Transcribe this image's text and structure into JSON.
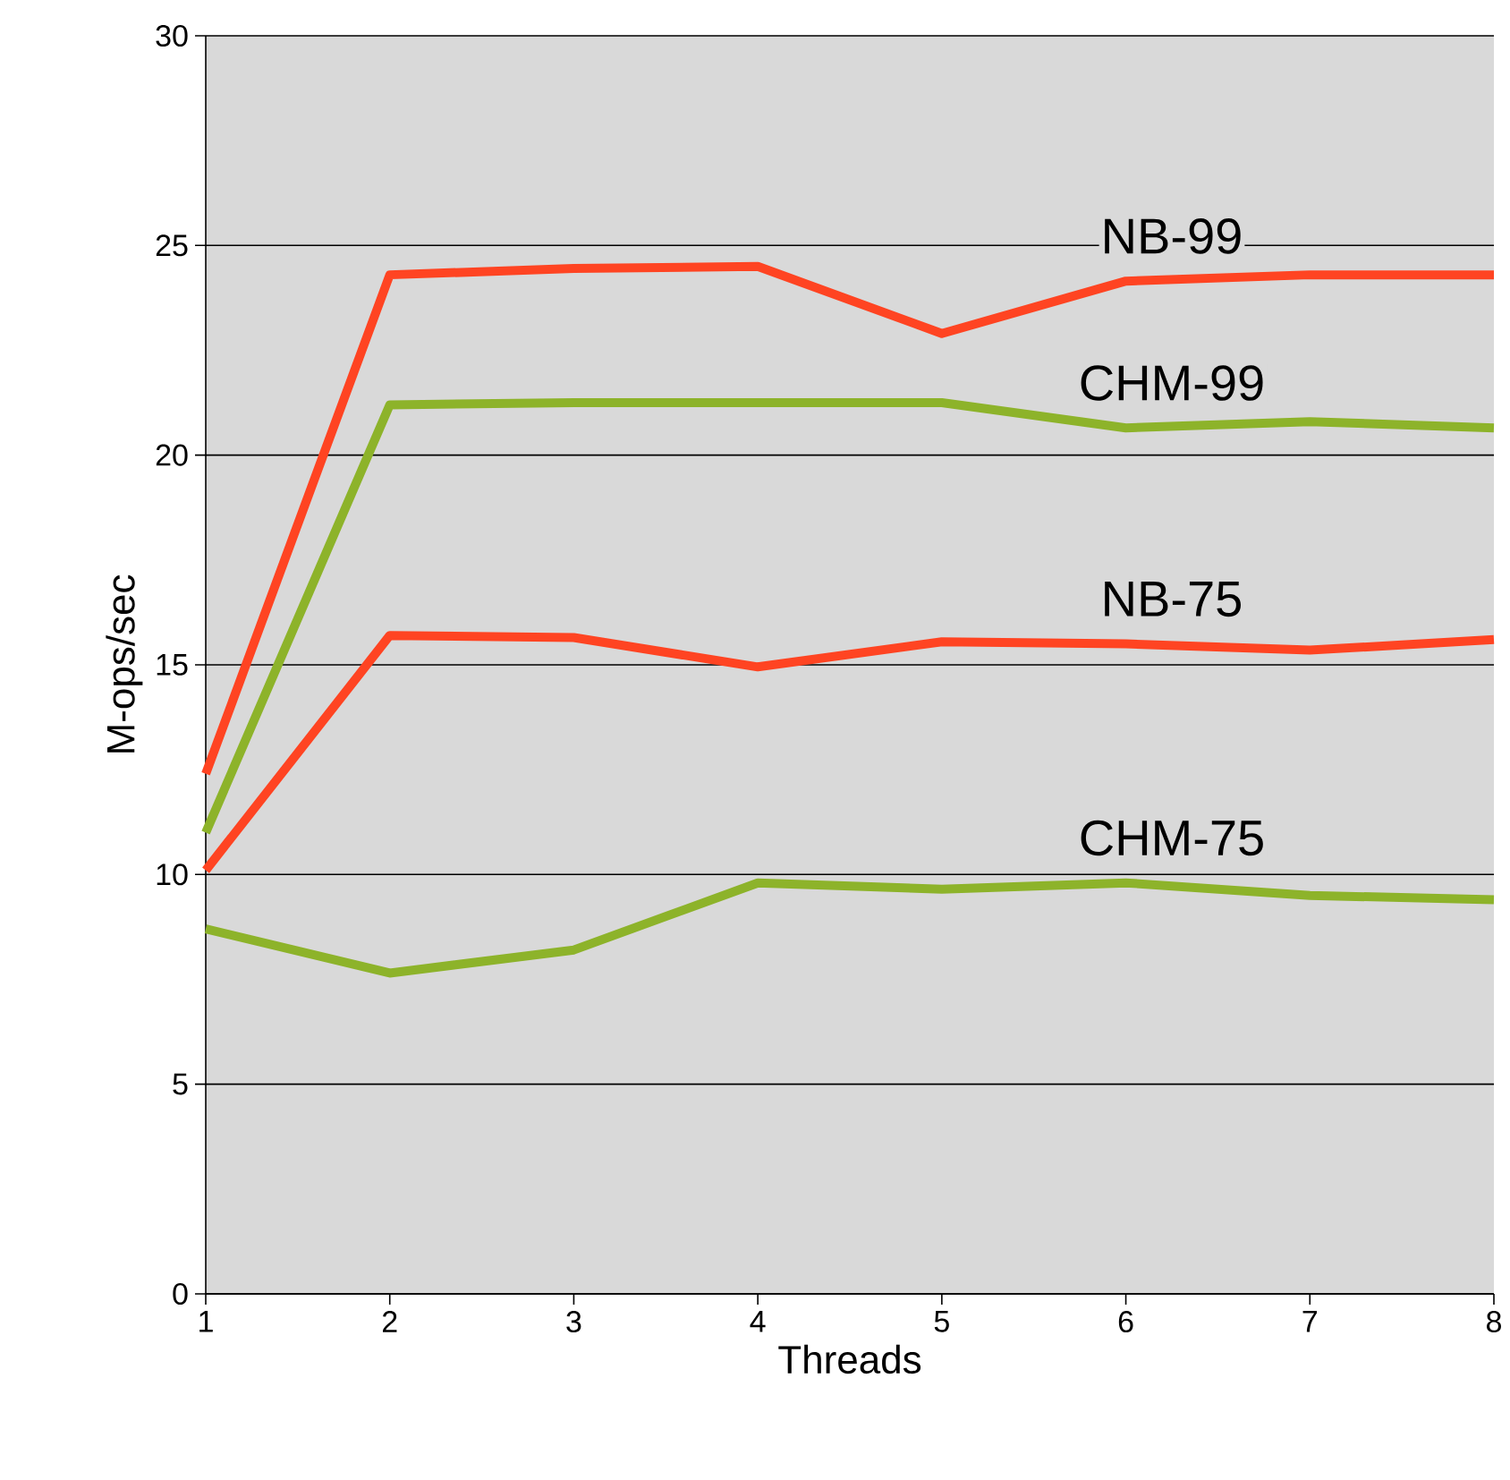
{
  "chart_data": {
    "type": "line",
    "xlabel": "Threads",
    "ylabel": "M-ops/sec",
    "x": [
      1,
      2,
      3,
      4,
      5,
      6,
      7,
      8
    ],
    "series": [
      {
        "name": "NB-99",
        "color": "#ff4422",
        "values": [
          12.4,
          24.3,
          24.45,
          24.5,
          22.9,
          24.15,
          24.3,
          24.3
        ]
      },
      {
        "name": "CHM-99",
        "color": "#8db32a",
        "values": [
          11.0,
          21.2,
          21.25,
          21.25,
          21.25,
          20.65,
          20.8,
          20.65
        ]
      },
      {
        "name": "NB-75",
        "color": "#ff4422",
        "values": [
          10.1,
          15.7,
          15.65,
          14.95,
          15.55,
          15.5,
          15.35,
          15.6
        ]
      },
      {
        "name": "CHM-75",
        "color": "#8db32a",
        "values": [
          8.7,
          7.65,
          8.2,
          9.8,
          9.65,
          9.8,
          9.5,
          9.4
        ]
      }
    ],
    "xlim": [
      1,
      8
    ],
    "ylim": [
      0,
      30
    ],
    "xticks": [
      1,
      2,
      3,
      4,
      5,
      6,
      7,
      8
    ],
    "yticks": [
      0,
      5,
      10,
      15,
      20,
      25,
      30
    ],
    "grid": "y",
    "legend": false,
    "marker": "none",
    "line_style": "solid"
  }
}
